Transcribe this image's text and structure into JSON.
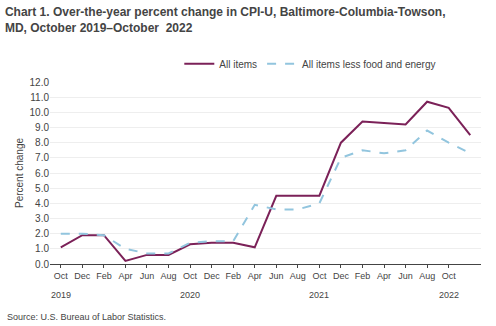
{
  "chart_data": {
    "type": "line",
    "title": "Chart 1. Over-the-year percent change in CPI-U, Baltimore-Columbia-Towson,\nMD, October 2019–October  2022",
    "y_label": "Percent change",
    "categories": [
      "Oct",
      "Dec",
      "Feb",
      "Apr",
      "Jun",
      "Aug",
      "Oct",
      "Dec",
      "Feb",
      "Apr",
      "Jun",
      "Aug",
      "Oct",
      "Dec",
      "Feb",
      "Apr",
      "Jun",
      "Aug",
      "Oct",
      null
    ],
    "series": [
      {
        "name": "All items",
        "color": "#7b2158",
        "line_style": "solid",
        "values": [
          1.1,
          1.9,
          1.9,
          0.2,
          0.6,
          0.6,
          1.3,
          1.4,
          1.4,
          1.1,
          4.5,
          4.5,
          4.5,
          8.0,
          9.4,
          9.3,
          9.2,
          10.7,
          10.3,
          8.5
        ]
      },
      {
        "name": "All items less food and energy",
        "color": "#92c5de",
        "line_style": "dashed",
        "values": [
          2.0,
          2.0,
          1.9,
          1.0,
          0.7,
          0.7,
          1.4,
          1.5,
          1.5,
          3.9,
          3.6,
          3.6,
          4.0,
          7.0,
          7.5,
          7.3,
          7.5,
          8.8,
          8.0,
          7.3
        ]
      }
    ],
    "ylim": [
      0,
      12.0
    ],
    "yticks": [
      {
        "value": 0.0,
        "label": "0.0"
      },
      {
        "value": 1.0,
        "label": "1.0"
      },
      {
        "value": 2.0,
        "label": "2.0"
      },
      {
        "value": 3.0,
        "label": "3.0"
      },
      {
        "value": 4.0,
        "label": "4.0"
      },
      {
        "value": 5.0,
        "label": "5.0"
      },
      {
        "value": 6.0,
        "label": "6.0"
      },
      {
        "value": 7.0,
        "label": "7.0"
      },
      {
        "value": 8.0,
        "label": "8.0"
      },
      {
        "value": 9.0,
        "label": "9.0"
      },
      {
        "value": 10.0,
        "label": "10.0"
      },
      {
        "value": 11.0,
        "label": "11.0"
      },
      {
        "value": 12.0,
        "label": "12.0"
      }
    ],
    "annotations": [
      {
        "x": 0,
        "text": "2019"
      },
      {
        "x": 6,
        "text": "2020"
      },
      {
        "x": 12,
        "text": "2021"
      },
      {
        "x": 18,
        "text": "2022"
      },
      {
        "text": "Source: U.S. Bureau of Labor Statistics."
      }
    ],
    "grid": true,
    "legend": "top"
  }
}
